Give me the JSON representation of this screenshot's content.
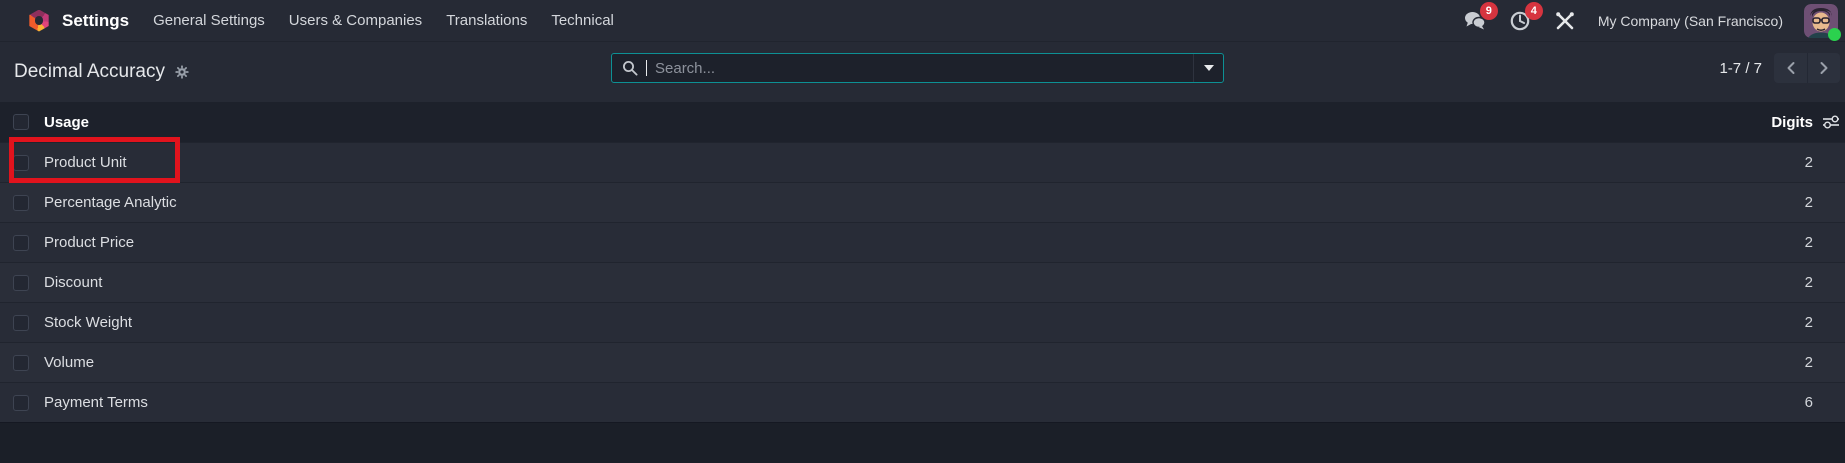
{
  "navbar": {
    "brand": "Settings",
    "menu_items": [
      "General Settings",
      "Users & Companies",
      "Translations",
      "Technical"
    ],
    "messages_badge": "9",
    "activities_badge": "4",
    "company_name": "My Company (San Francisco)"
  },
  "control_panel": {
    "title": "Decimal Accuracy",
    "search": {
      "placeholder": "Search..."
    },
    "pager": {
      "range": "1-7 / 7"
    }
  },
  "table": {
    "header": {
      "usage": "Usage",
      "digits": "Digits"
    },
    "rows": [
      {
        "usage": "Product Unit",
        "digits": "2",
        "highlighted": true
      },
      {
        "usage": "Percentage Analytic",
        "digits": "2",
        "highlighted": false
      },
      {
        "usage": "Product Price",
        "digits": "2",
        "highlighted": false
      },
      {
        "usage": "Discount",
        "digits": "2",
        "highlighted": false
      },
      {
        "usage": "Stock Weight",
        "digits": "2",
        "highlighted": false
      },
      {
        "usage": "Volume",
        "digits": "2",
        "highlighted": false
      },
      {
        "usage": "Payment Terms",
        "digits": "6",
        "highlighted": false
      }
    ]
  },
  "icons": {
    "logo": "odoo-hexagon-logo",
    "navbar_right": [
      "messages-bubbles-icon",
      "activities-clock-icon",
      "tools-icon"
    ],
    "title_gear": "gear-icon",
    "search": [
      "search-icon",
      "caret-down-icon"
    ],
    "pager": [
      "chevron-left-icon",
      "chevron-right-icon"
    ],
    "header_right": "column-sliders-icon"
  },
  "colors": {
    "accent_teal": "#0d9094",
    "badge_red": "#d6343f",
    "annotation_red": "#e1131d",
    "online_green": "#2bd14e",
    "navbar_bg": "#262a35",
    "header_bg": "#1d212b"
  }
}
